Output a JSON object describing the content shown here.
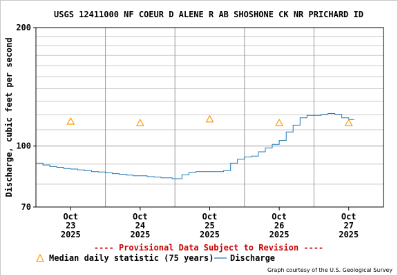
{
  "chart_data": {
    "type": "line",
    "title": "USGS 12411000 NF COEUR D ALENE R AB SHOSHONE CK NR PRICHARD ID",
    "ylabel": "Discharge, cubic feet per second",
    "xlabel": "",
    "y_scale": "log",
    "ylim": [
      70,
      200
    ],
    "y_ticks": [
      "70",
      "100",
      "200"
    ],
    "y_ticks_values": [
      70,
      100,
      200
    ],
    "x_range_days": [
      0,
      5
    ],
    "x_ticks": [
      {
        "day": 0.5,
        "lines": [
          "Oct",
          "23",
          "2025"
        ]
      },
      {
        "day": 1.5,
        "lines": [
          "Oct",
          "24",
          "2025"
        ]
      },
      {
        "day": 2.5,
        "lines": [
          "Oct",
          "25",
          "2025"
        ]
      },
      {
        "day": 3.5,
        "lines": [
          "Oct",
          "26",
          "2025"
        ]
      },
      {
        "day": 4.5,
        "lines": [
          "Oct",
          "27",
          "2025"
        ]
      }
    ],
    "series": [
      {
        "name": "Discharge",
        "kind": "line",
        "color": "#1f77b4",
        "x": [
          0.0,
          0.1,
          0.2,
          0.3,
          0.4,
          0.5,
          0.6,
          0.7,
          0.8,
          0.9,
          1.0,
          1.1,
          1.2,
          1.3,
          1.4,
          1.5,
          1.6,
          1.7,
          1.8,
          1.9,
          1.96,
          2.1,
          2.2,
          2.3,
          2.4,
          2.5,
          2.6,
          2.7,
          2.8,
          2.9,
          3.0,
          3.1,
          3.2,
          3.3,
          3.4,
          3.5,
          3.6,
          3.7,
          3.8,
          3.9,
          4.0,
          4.1,
          4.2,
          4.3,
          4.4,
          4.5,
          4.58
        ],
        "y": [
          90.5,
          89.5,
          88.7,
          88.3,
          87.7,
          87.4,
          87.0,
          86.6,
          86.1,
          85.9,
          85.5,
          85.1,
          84.8,
          84.4,
          84.0,
          84.0,
          83.6,
          83.4,
          83.0,
          83.0,
          82.6,
          84.5,
          85.7,
          86.1,
          86.1,
          86.1,
          86.1,
          86.6,
          90.5,
          92.6,
          93.8,
          94.3,
          96.7,
          98.9,
          101.0,
          103.3,
          108.6,
          113.0,
          118.0,
          119.6,
          119.6,
          120.4,
          121.0,
          120.4,
          118.0,
          116.8,
          116.8
        ]
      },
      {
        "name": "Median daily statistic (75 years)",
        "kind": "marker",
        "color": "#ff9900",
        "x": [
          0.5,
          1.5,
          2.5,
          3.5,
          4.5
        ],
        "y": [
          115.5,
          114.5,
          117.0,
          114.5,
          114.5
        ]
      }
    ],
    "grid": true,
    "legend": "bottom"
  },
  "notice": "---- Provisional Data Subject to Revision ----",
  "legend": {
    "median_label": "Median daily statistic (75 years)",
    "discharge_label": "Discharge"
  },
  "credit": "Graph courtesy of the U.S. Geological Survey",
  "colors": {
    "discharge": "#1f77b4",
    "median_marker": "#ff9900",
    "notice": "#cc0000",
    "grid": "#c8c8c8"
  }
}
